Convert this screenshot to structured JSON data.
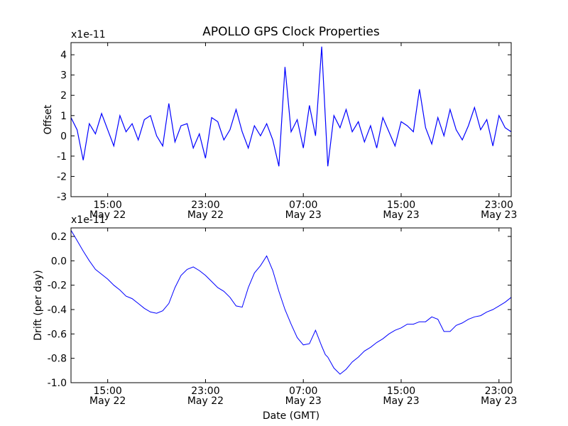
{
  "figure": {
    "title": "APOLLO GPS Clock Properties",
    "xlabel": "Date (GMT)"
  },
  "chart_data": [
    {
      "type": "line",
      "name": "offset-panel",
      "ylabel": "Offset",
      "scale_label": "x1e-11",
      "line_color": "#0000ff",
      "x_unit": "hours since 12:00 May 22",
      "xlim": [
        0,
        36
      ],
      "ylim": [
        -3,
        4.6
      ],
      "yticks": [
        -3,
        -2,
        -1,
        0,
        1,
        2,
        3,
        4
      ],
      "xticks": [
        {
          "x": 3,
          "time": "15:00",
          "date": "May 22"
        },
        {
          "x": 11,
          "time": "23:00",
          "date": "May 22"
        },
        {
          "x": 19,
          "time": "07:00",
          "date": "May 23"
        },
        {
          "x": 27,
          "time": "15:00",
          "date": "May 23"
        },
        {
          "x": 35,
          "time": "23:00",
          "date": "May 23"
        }
      ],
      "x": [
        0,
        0.5,
        1,
        1.5,
        2,
        2.5,
        3,
        3.5,
        4,
        4.5,
        5,
        5.5,
        6,
        6.5,
        7,
        7.5,
        8,
        8.5,
        9,
        9.5,
        10,
        10.5,
        11,
        11.5,
        12,
        12.5,
        13,
        13.5,
        14,
        14.5,
        15,
        15.5,
        16,
        16.5,
        17,
        17.5,
        18,
        18.5,
        19,
        19.5,
        20,
        20.5,
        21,
        21.5,
        22,
        22.5,
        23,
        23.5,
        24,
        24.5,
        25,
        25.5,
        26,
        26.5,
        27,
        27.5,
        28,
        28.5,
        29,
        29.5,
        30,
        30.5,
        31,
        31.5,
        32,
        32.5,
        33,
        33.5,
        34,
        34.5,
        35,
        35.5,
        36
      ],
      "y": [
        0.9,
        0.3,
        -1.2,
        0.6,
        0.1,
        1.1,
        0.3,
        -0.5,
        1.0,
        0.2,
        0.6,
        -0.2,
        0.8,
        1.0,
        0.0,
        -0.5,
        1.6,
        -0.3,
        0.5,
        0.6,
        -0.6,
        0.1,
        -1.1,
        0.9,
        0.7,
        -0.2,
        0.3,
        1.3,
        0.2,
        -0.6,
        0.5,
        0.0,
        0.6,
        -0.2,
        -1.5,
        3.4,
        0.2,
        0.8,
        -0.6,
        1.5,
        0.0,
        4.4,
        -1.5,
        1.0,
        0.4,
        1.3,
        0.2,
        0.7,
        -0.3,
        0.5,
        -0.6,
        0.9,
        0.2,
        -0.5,
        0.7,
        0.5,
        0.2,
        2.3,
        0.4,
        -0.4,
        0.9,
        0.0,
        1.3,
        0.3,
        -0.2,
        0.5,
        1.4,
        0.3,
        0.8,
        -0.5,
        1.0,
        0.4,
        0.2
      ]
    },
    {
      "type": "line",
      "name": "drift-panel",
      "ylabel": "Drift (per day)",
      "scale_label": "x1e-11",
      "line_color": "#0000ff",
      "x_unit": "hours since 12:00 May 22",
      "xlim": [
        0,
        36
      ],
      "ylim": [
        -1.0,
        0.27
      ],
      "yticks": [
        -1.0,
        -0.8,
        -0.6,
        -0.4,
        -0.2,
        0.0,
        0.2
      ],
      "ytick_labels": [
        "-1.0",
        "-0.8",
        "-0.6",
        "-0.4",
        "-0.2",
        "0.0",
        "0.2"
      ],
      "xticks": [
        {
          "x": 3,
          "time": "15:00",
          "date": "May 22"
        },
        {
          "x": 11,
          "time": "23:00",
          "date": "May 22"
        },
        {
          "x": 19,
          "time": "07:00",
          "date": "May 23"
        },
        {
          "x": 27,
          "time": "15:00",
          "date": "May 23"
        },
        {
          "x": 35,
          "time": "23:00",
          "date": "May 23"
        }
      ],
      "x": [
        0,
        0.3,
        1,
        1.5,
        2,
        3,
        3.5,
        4,
        4.5,
        5,
        5.5,
        6,
        6.5,
        7,
        7.5,
        8,
        8.5,
        9,
        9.5,
        10,
        10.5,
        11,
        11.5,
        12,
        12.5,
        13,
        13.5,
        14,
        14.5,
        15,
        15.5,
        16,
        16.5,
        17,
        17.5,
        18,
        18.5,
        19,
        19.5,
        20,
        20.5,
        20.8,
        21,
        21.5,
        22,
        22.5,
        23,
        23.5,
        24,
        24.5,
        25,
        25.5,
        26,
        26.5,
        27,
        27.5,
        28,
        28.5,
        29,
        29.5,
        30,
        30.5,
        31,
        31.5,
        32,
        32.5,
        33,
        33.5,
        34,
        34.5,
        35,
        35.5,
        36
      ],
      "y": [
        0.25,
        0.2,
        0.08,
        0.0,
        -0.07,
        -0.15,
        -0.2,
        -0.24,
        -0.29,
        -0.31,
        -0.35,
        -0.39,
        -0.42,
        -0.43,
        -0.41,
        -0.35,
        -0.22,
        -0.12,
        -0.07,
        -0.05,
        -0.08,
        -0.12,
        -0.17,
        -0.22,
        -0.25,
        -0.3,
        -0.37,
        -0.38,
        -0.22,
        -0.1,
        -0.04,
        0.04,
        -0.08,
        -0.25,
        -0.4,
        -0.52,
        -0.63,
        -0.69,
        -0.68,
        -0.57,
        -0.7,
        -0.77,
        -0.79,
        -0.88,
        -0.93,
        -0.89,
        -0.83,
        -0.79,
        -0.74,
        -0.71,
        -0.67,
        -0.64,
        -0.6,
        -0.57,
        -0.55,
        -0.52,
        -0.52,
        -0.5,
        -0.5,
        -0.46,
        -0.48,
        -0.58,
        -0.58,
        -0.53,
        -0.51,
        -0.48,
        -0.46,
        -0.45,
        -0.42,
        -0.4,
        -0.37,
        -0.34,
        -0.3
      ]
    }
  ]
}
